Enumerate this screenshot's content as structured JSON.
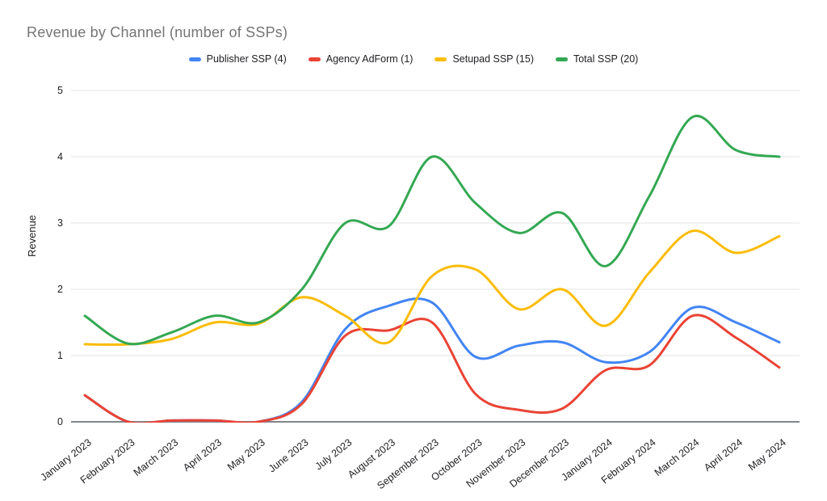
{
  "chart_data": {
    "type": "line",
    "title": "Revenue by Channel (number of SSPs)",
    "xlabel": "",
    "ylabel": "Revenue",
    "ylim": [
      0,
      5
    ],
    "yticks": [
      0,
      1,
      2,
      3,
      4,
      5
    ],
    "grid": true,
    "legend_position": "top",
    "smooth": true,
    "categories": [
      "January 2023",
      "February 2023",
      "March 2023",
      "April 2023",
      "May 2023",
      "June 2023",
      "July 2023",
      "August 2023",
      "September 2023",
      "October 2023",
      "November 2023",
      "December 2023",
      "January 2024",
      "February 2024",
      "March 2024",
      "April 2024",
      "May 2024"
    ],
    "series": [
      {
        "name": "Publisher SSP (4)",
        "color": "#4285F4",
        "values": [
          0.4,
          0,
          0.02,
          0.02,
          0,
          0.3,
          1.4,
          1.75,
          1.8,
          0.98,
          1.15,
          1.2,
          0.9,
          1.05,
          1.72,
          1.5,
          1.2
        ]
      },
      {
        "name": "Agency AdForm (1)",
        "color": "#EA4335",
        "values": [
          0.4,
          0,
          0.02,
          0.02,
          0,
          0.27,
          1.3,
          1.38,
          1.5,
          0.42,
          0.18,
          0.2,
          0.78,
          0.85,
          1.6,
          1.27,
          0.82
        ]
      },
      {
        "name": "Setupad SSP (15)",
        "color": "#FBBC04",
        "values": [
          1.17,
          1.17,
          1.25,
          1.5,
          1.48,
          1.88,
          1.6,
          1.2,
          2.2,
          2.3,
          1.7,
          2.0,
          1.45,
          2.25,
          2.88,
          2.55,
          2.8
        ]
      },
      {
        "name": "Total SSP (20)",
        "color": "#34A853",
        "values": [
          1.6,
          1.18,
          1.35,
          1.6,
          1.5,
          2.0,
          3.0,
          2.95,
          4.0,
          3.3,
          2.85,
          3.15,
          2.35,
          3.4,
          4.6,
          4.1,
          4.0
        ]
      }
    ],
    "axis_colors": {
      "baseline": "#80868B",
      "gridline": "#E3E3E3",
      "tick_text": "#202124"
    }
  }
}
